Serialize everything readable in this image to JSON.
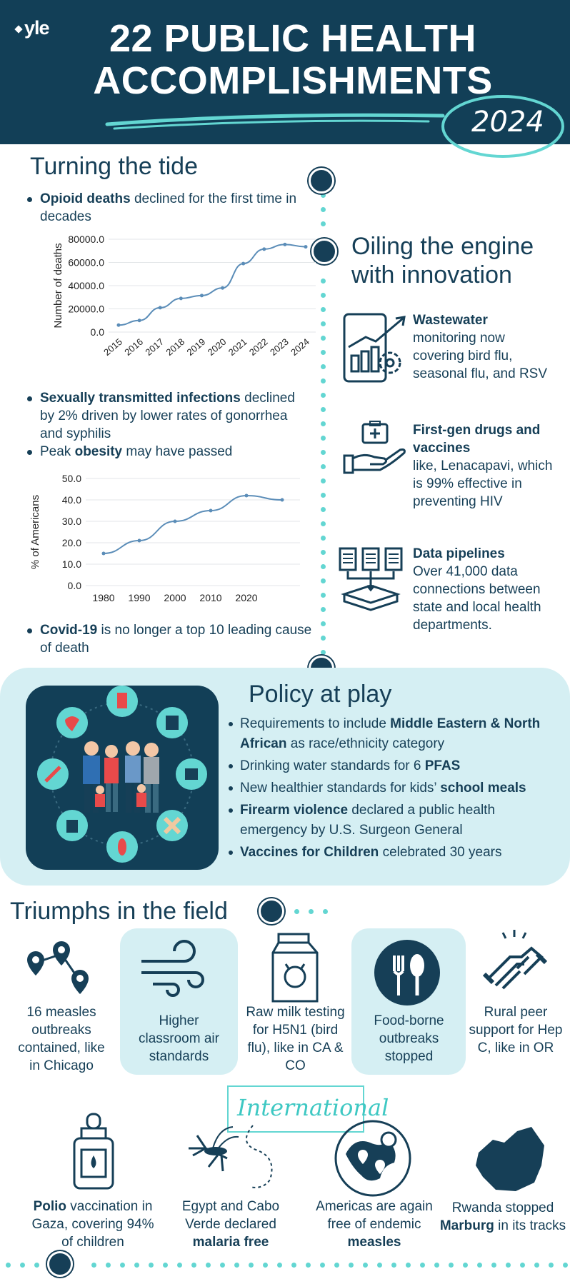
{
  "header": {
    "logo": "yle",
    "title_line1": "22 PUBLIC HEALTH",
    "title_line2": "ACCOMPLISHMENTS",
    "year": "2024"
  },
  "turning": {
    "title": "Turning the tide",
    "opioid_bold": "Opioid deaths",
    "opioid_rest": " declined for the first time in decades",
    "sti_bold": "Sexually transmitted infections",
    "sti_rest": " declined by 2% driven by lower rates of gonorrhea and syphilis",
    "obesity_pre": "Peak ",
    "obesity_bold": "obesity",
    "obesity_rest": " may have passed",
    "covid_bold": "Covid-19",
    "covid_rest": " is no longer a top 10 leading cause of death"
  },
  "chart_data": [
    {
      "type": "line",
      "ylabel": "Number of deaths",
      "ylim": [
        0,
        80000
      ],
      "yticks": [
        "0.0",
        "20000.0",
        "40000.0",
        "60000.0",
        "80000.0"
      ],
      "categories": [
        "2015",
        "2016",
        "2017",
        "2018",
        "2019",
        "2020",
        "2021",
        "2022",
        "2023",
        "2024"
      ],
      "values": [
        6000,
        10000,
        21000,
        29000,
        31500,
        38000,
        59000,
        71500,
        75500,
        73500
      ],
      "grid": true
    },
    {
      "type": "line",
      "ylabel": "% of Americans",
      "ylim": [
        0,
        50
      ],
      "yticks": [
        "0.0",
        "10.0",
        "20.0",
        "30.0",
        "40.0",
        "50.0"
      ],
      "categories": [
        "1980",
        "1990",
        "2000",
        "2010",
        "2020"
      ],
      "x": [
        1980,
        1990,
        2000,
        2010,
        2020,
        2030
      ],
      "values": [
        15,
        21,
        30,
        35,
        42,
        40
      ],
      "grid": true
    }
  ],
  "innovation": {
    "title_line1": "Oiling the engine",
    "title_line2": "with innovation",
    "items": [
      {
        "bold": "Wastewater",
        "text": "monitoring now covering bird flu, seasonal flu, and RSV"
      },
      {
        "bold": "First-gen drugs and vaccines",
        "text": "like, Lenacapavi, which is 99% effective in preventing HIV"
      },
      {
        "bold": "Data pipelines",
        "text": "Over 41,000 data connections between state and local health departments."
      }
    ]
  },
  "policy": {
    "title": "Policy at play",
    "items": [
      {
        "pre": "Requirements to include ",
        "bold": "Middle Eastern & North African",
        "post": " as race/ethnicity category"
      },
      {
        "pre": "Drinking water standards for 6 ",
        "bold": "PFAS",
        "post": ""
      },
      {
        "pre": "New healthier standards for kids’ ",
        "bold": "school meals",
        "post": ""
      },
      {
        "pre": "",
        "bold": "Firearm violence",
        "post": " declared a public health emergency by U.S. Surgeon General"
      },
      {
        "pre": "",
        "bold": "Vaccines for Children",
        "post": " celebrated 30 years"
      }
    ]
  },
  "field": {
    "title": "Triumphs in the field",
    "tiles": [
      "16 measles outbreaks contained, like in Chicago",
      "Higher classroom air standards",
      "Raw milk testing for H5N1 (bird flu), like in CA & CO",
      "Food-borne outbreaks stopped",
      "Rural peer support for Hep C, like in OR"
    ],
    "international_label": "International",
    "intl": [
      {
        "pre": "",
        "bold": "Polio",
        "post": " vaccination in Gaza, covering 94% of children"
      },
      {
        "pre": "Egypt and Cabo Verde declared ",
        "bold": "malaria free",
        "post": ""
      },
      {
        "pre": "Americas are again free of endemic ",
        "bold": "measles",
        "post": ""
      },
      {
        "pre": "Rwanda stopped ",
        "bold": "Marburg",
        "post": " in its tracks"
      }
    ]
  },
  "colors": {
    "navy": "#123f57",
    "teal": "#63d6d2",
    "light": "#d5eff3"
  }
}
